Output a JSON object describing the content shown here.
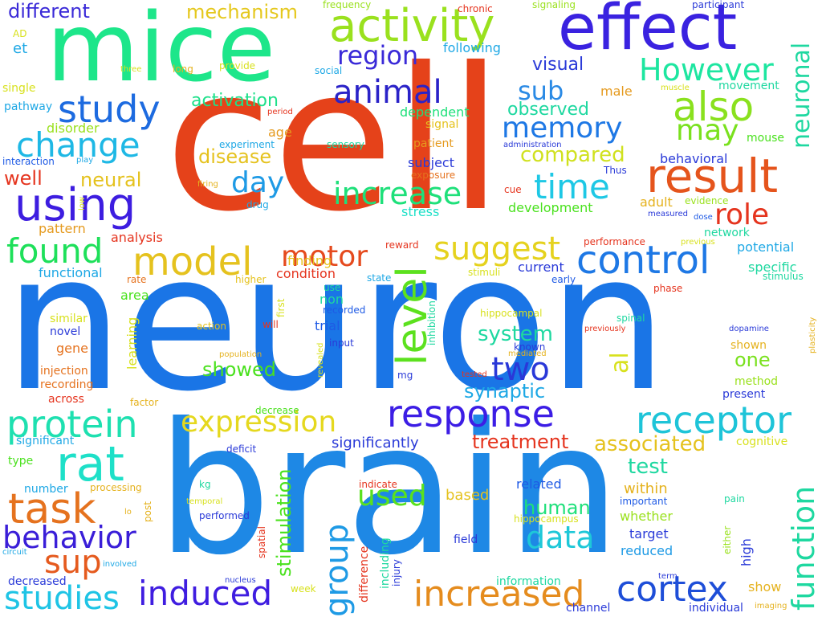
{
  "words": [
    {
      "text": "neuron",
      "color": "#1a75e6"
    },
    {
      "text": "cell",
      "color": "#e5421a"
    },
    {
      "text": "brain",
      "color": "#1e88e5"
    },
    {
      "text": "mice",
      "color": "#1de68a"
    },
    {
      "text": "effect",
      "color": "#3a22e0"
    },
    {
      "text": "activity",
      "color": "#9ae11e"
    },
    {
      "text": "result",
      "color": "#e5541c"
    },
    {
      "text": "response",
      "color": "#3c1de5"
    },
    {
      "text": "receptor",
      "color": "#1ec4d8"
    },
    {
      "text": "increased",
      "color": "#e58c1e"
    },
    {
      "text": "study",
      "color": "#1d6be0"
    },
    {
      "text": "also",
      "color": "#8ae11e"
    },
    {
      "text": "However",
      "color": "#1de6a0"
    },
    {
      "text": "using",
      "color": "#3d1de0"
    },
    {
      "text": "change",
      "color": "#1eb8e5"
    },
    {
      "text": "model",
      "color": "#e5c21e"
    },
    {
      "text": "level",
      "color": "#5ce11e"
    },
    {
      "text": "control",
      "color": "#1e78e5"
    },
    {
      "text": "protein",
      "color": "#1ee0b0"
    },
    {
      "text": "rat",
      "color": "#1ee0c8"
    },
    {
      "text": "task",
      "color": "#e5721e"
    },
    {
      "text": "behavior",
      "color": "#3a1ed8"
    },
    {
      "text": "studies",
      "color": "#1ec4e5"
    },
    {
      "text": "sup",
      "color": "#e55a1e"
    },
    {
      "text": "induced",
      "color": "#3f1de0"
    },
    {
      "text": "cortex",
      "color": "#1e4ed8"
    },
    {
      "text": "group",
      "color": "#1e9ae5"
    },
    {
      "text": "function",
      "color": "#1ed8a0"
    },
    {
      "text": "memory",
      "color": "#1e78e5"
    },
    {
      "text": "may",
      "color": "#7ae11e"
    },
    {
      "text": "animal",
      "color": "#2a22c8"
    },
    {
      "text": "found",
      "color": "#1ee05a"
    },
    {
      "text": "suggest",
      "color": "#e5d21e"
    },
    {
      "text": "motor",
      "color": "#e54a1e"
    },
    {
      "text": "increase",
      "color": "#1ee07a"
    },
    {
      "text": "time",
      "color": "#1ec8e5"
    },
    {
      "text": "role",
      "color": "#e5341e"
    },
    {
      "text": "two",
      "color": "#2a38d8"
    },
    {
      "text": "expression",
      "color": "#e5d81e"
    },
    {
      "text": "data",
      "color": "#1ec8d8"
    },
    {
      "text": "used",
      "color": "#5ae11e"
    },
    {
      "text": "day",
      "color": "#1e9ae5"
    },
    {
      "text": "region",
      "color": "#3a2ad8"
    },
    {
      "text": "different",
      "color": "#3a2ad8"
    },
    {
      "text": "mechanism",
      "color": "#e5c81e"
    },
    {
      "text": "neuronal",
      "color": "#1ed8a0"
    },
    {
      "text": "sub",
      "color": "#2a8ae5"
    },
    {
      "text": "compared",
      "color": "#d0e11e"
    },
    {
      "text": "neural",
      "color": "#e5c21e"
    },
    {
      "text": "disease",
      "color": "#e5c21e"
    },
    {
      "text": "showed",
      "color": "#4ae11e"
    },
    {
      "text": "treatment",
      "color": "#e5341e"
    },
    {
      "text": "associated",
      "color": "#e5c21e"
    },
    {
      "text": "synaptic",
      "color": "#1ea8e5"
    },
    {
      "text": "system",
      "color": "#1ed8a0"
    },
    {
      "text": "stimulation",
      "color": "#4ae11e"
    },
    {
      "text": "al",
      "color": "#d8e11e"
    },
    {
      "text": "human",
      "color": "#1ee07a"
    },
    {
      "text": "test",
      "color": "#1ed8a0"
    },
    {
      "text": "activation",
      "color": "#1ee08a"
    },
    {
      "text": "visual",
      "color": "#2a3ad8"
    },
    {
      "text": "observed",
      "color": "#1ed8a0"
    },
    {
      "text": "one",
      "color": "#7ae11e"
    },
    {
      "text": "male",
      "color": "#e59a1e"
    },
    {
      "text": "adult",
      "color": "#e5b21e"
    },
    {
      "text": "significantly",
      "color": "#2a3ad8"
    },
    {
      "text": "well",
      "color": "#e5341e"
    },
    {
      "text": "et",
      "color": "#1ea8e5"
    },
    {
      "text": "stress",
      "color": "#1ee0c8"
    },
    {
      "text": "development",
      "color": "#4ae11e"
    },
    {
      "text": "reduced",
      "color": "#1e9ae5"
    },
    {
      "text": "related",
      "color": "#1e5ae5"
    },
    {
      "text": "target",
      "color": "#2a3ad8"
    },
    {
      "text": "within",
      "color": "#e5b21e"
    },
    {
      "text": "whether",
      "color": "#9ae11e"
    },
    {
      "text": "based",
      "color": "#e5c21e"
    },
    {
      "text": "subject",
      "color": "#2a3ad8"
    },
    {
      "text": "dependent",
      "color": "#1ee07a"
    },
    {
      "text": "condition",
      "color": "#e5341e"
    },
    {
      "text": "finding",
      "color": "#e5c21e"
    },
    {
      "text": "analysis",
      "color": "#e5341e"
    },
    {
      "text": "pattern",
      "color": "#e59a1e"
    },
    {
      "text": "functional",
      "color": "#1ea8e5"
    },
    {
      "text": "age",
      "color": "#e59a1e"
    },
    {
      "text": "disorder",
      "color": "#9ae11e"
    },
    {
      "text": "interaction",
      "color": "#1e5ae5"
    },
    {
      "text": "pathway",
      "color": "#1ea8e5"
    },
    {
      "text": "current",
      "color": "#2a3ad8"
    },
    {
      "text": "potential",
      "color": "#1ea8e5"
    },
    {
      "text": "specific",
      "color": "#1ed8a0"
    },
    {
      "text": "network",
      "color": "#1ed8a0"
    },
    {
      "text": "behavioral",
      "color": "#2a3ad8"
    },
    {
      "text": "signal",
      "color": "#e5c21e"
    },
    {
      "text": "patient",
      "color": "#e59a1e"
    },
    {
      "text": "sensory",
      "color": "#1ed8a0"
    },
    {
      "text": "experiment",
      "color": "#1ea8e5"
    },
    {
      "text": "area",
      "color": "#4ae11e"
    },
    {
      "text": "gene",
      "color": "#e5721e"
    },
    {
      "text": "learning",
      "color": "#d8e11e"
    },
    {
      "text": "novel",
      "color": "#2a3ad8"
    },
    {
      "text": "similar",
      "color": "#d8e11e"
    },
    {
      "text": "injection",
      "color": "#e5721e"
    },
    {
      "text": "recording",
      "color": "#e5721e"
    },
    {
      "text": "across",
      "color": "#e5341e"
    },
    {
      "text": "significant",
      "color": "#1ea8e5"
    },
    {
      "text": "type",
      "color": "#4ae11e"
    },
    {
      "text": "number",
      "color": "#1ea8e5"
    },
    {
      "text": "processing",
      "color": "#e5b21e"
    },
    {
      "text": "factor",
      "color": "#e5b21e"
    },
    {
      "text": "deficit",
      "color": "#2a3ad8"
    },
    {
      "text": "decrease",
      "color": "#4ae11e"
    },
    {
      "text": "cognitive",
      "color": "#d8e11e"
    },
    {
      "text": "shown",
      "color": "#e5b21e"
    },
    {
      "text": "method",
      "color": "#9ae11e"
    },
    {
      "text": "present",
      "color": "#2a3ad8"
    },
    {
      "text": "hippocampal",
      "color": "#d8e11e"
    },
    {
      "text": "spinal",
      "color": "#1ed8a0"
    },
    {
      "text": "inhibition",
      "color": "#1ed8a0"
    },
    {
      "text": "recorded",
      "color": "#1e5ae5"
    },
    {
      "text": "input",
      "color": "#2a3ad8"
    },
    {
      "text": "trial",
      "color": "#1e5ae5"
    },
    {
      "text": "non",
      "color": "#1ed8a0"
    },
    {
      "text": "first",
      "color": "#d8e11e"
    },
    {
      "text": "stimuli",
      "color": "#d8e11e"
    },
    {
      "text": "state",
      "color": "#1ea8e5"
    },
    {
      "text": "early",
      "color": "#1e5ae5"
    },
    {
      "text": "rate",
      "color": "#e5721e"
    },
    {
      "text": "higher",
      "color": "#e5c21e"
    },
    {
      "text": "use",
      "color": "#1ed8a0"
    },
    {
      "text": "will",
      "color": "#e5341e"
    },
    {
      "text": "action",
      "color": "#e5c21e"
    },
    {
      "text": "population",
      "color": "#e5b21e"
    },
    {
      "text": "mg",
      "color": "#2a3ad8"
    },
    {
      "text": "tested",
      "color": "#e5341e"
    },
    {
      "text": "mediated",
      "color": "#e5b21e"
    },
    {
      "text": "known",
      "color": "#2a3ad8"
    },
    {
      "text": "previously",
      "color": "#e5341e"
    },
    {
      "text": "dopamine",
      "color": "#2a3ad8"
    },
    {
      "text": "stimulus",
      "color": "#1ed8a0"
    },
    {
      "text": "plasticity",
      "color": "#e5b21e"
    },
    {
      "text": "phase",
      "color": "#e5341e"
    },
    {
      "text": "revealed",
      "color": "#d8e11e"
    },
    {
      "text": "performance",
      "color": "#e5341e"
    },
    {
      "text": "previous",
      "color": "#d8e11e"
    },
    {
      "text": "evidence",
      "color": "#9ae11e"
    },
    {
      "text": "dose",
      "color": "#1e5ae5"
    },
    {
      "text": "measured",
      "color": "#2a3ad8"
    },
    {
      "text": "cue",
      "color": "#e5341e"
    },
    {
      "text": "reward",
      "color": "#e5341e"
    },
    {
      "text": "drug",
      "color": "#1ea8e5"
    },
    {
      "text": "exposure",
      "color": "#e5721e"
    },
    {
      "text": "firing",
      "color": "#e5b21e"
    },
    {
      "text": "low",
      "color": "#d8e11e"
    },
    {
      "text": "administration",
      "color": "#2a3ad8"
    },
    {
      "text": "Thus",
      "color": "#2a3ad8"
    },
    {
      "text": "chronic",
      "color": "#e5341e"
    },
    {
      "text": "frequency",
      "color": "#9ae11e"
    },
    {
      "text": "signaling",
      "color": "#9ae11e"
    },
    {
      "text": "participant",
      "color": "#2a3ad8"
    },
    {
      "text": "AD",
      "color": "#d8e11e"
    },
    {
      "text": "three",
      "color": "#d8e11e"
    },
    {
      "text": "long",
      "color": "#e5b21e"
    },
    {
      "text": "provide",
      "color": "#d8e11e"
    },
    {
      "text": "social",
      "color": "#1ea8e5"
    },
    {
      "text": "following",
      "color": "#1ea8e5"
    },
    {
      "text": "single",
      "color": "#d8e11e"
    },
    {
      "text": "period",
      "color": "#e5341e"
    },
    {
      "text": "play",
      "color": "#1ea8e5"
    },
    {
      "text": "movement",
      "color": "#1ed8a0"
    },
    {
      "text": "muscle",
      "color": "#d8e11e"
    },
    {
      "text": "mouse",
      "color": "#4ae11e"
    },
    {
      "text": "kg",
      "color": "#1ed8a0"
    },
    {
      "text": "temporal",
      "color": "#d8e11e"
    },
    {
      "text": "performed",
      "color": "#2a3ad8"
    },
    {
      "text": "lo",
      "color": "#e5b21e"
    },
    {
      "text": "post",
      "color": "#e5b21e"
    },
    {
      "text": "indicate",
      "color": "#e5341e"
    },
    {
      "text": "difference",
      "color": "#e5341e"
    },
    {
      "text": "including",
      "color": "#1ed8a0"
    },
    {
      "text": "injury",
      "color": "#2a3ad8"
    },
    {
      "text": "spatial",
      "color": "#e5341e"
    },
    {
      "text": "circuit",
      "color": "#1ea8e5"
    },
    {
      "text": "involved",
      "color": "#1ea8e5"
    },
    {
      "text": "nucleus",
      "color": "#2a3ad8"
    },
    {
      "text": "week",
      "color": "#d8e11e"
    },
    {
      "text": "decreased",
      "color": "#2a3ad8"
    },
    {
      "text": "field",
      "color": "#2a3ad8"
    },
    {
      "text": "hippocampus",
      "color": "#d8e11e"
    },
    {
      "text": "information",
      "color": "#1ed8a0"
    },
    {
      "text": "channel",
      "color": "#2a3ad8"
    },
    {
      "text": "individual",
      "color": "#2a3ad8"
    },
    {
      "text": "important",
      "color": "#1e5ae5"
    },
    {
      "text": "term",
      "color": "#2a3ad8"
    },
    {
      "text": "either",
      "color": "#9ae11e"
    },
    {
      "text": "high",
      "color": "#2a3ad8"
    },
    {
      "text": "show",
      "color": "#e5b21e"
    },
    {
      "text": "imaging",
      "color": "#e5b21e"
    },
    {
      "text": "pain",
      "color": "#1ed8a0"
    }
  ]
}
